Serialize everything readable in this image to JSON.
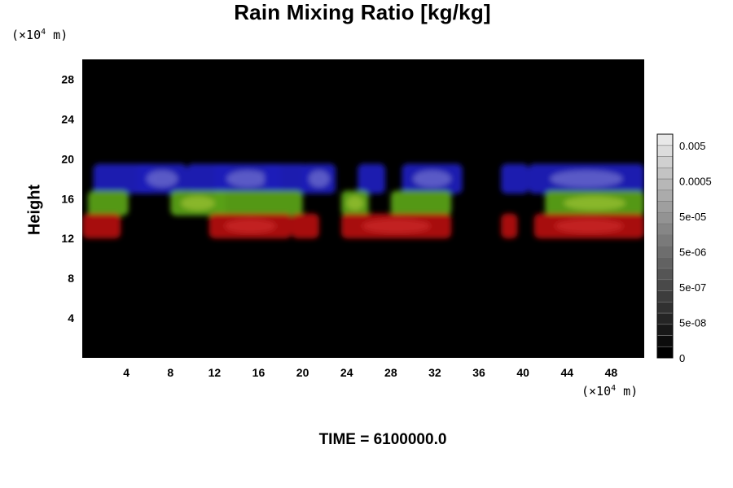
{
  "chart_data": {
    "type": "heatmap",
    "title": "Rain Mixing Ratio [kg/kg]",
    "ylabel": "Height",
    "xunit": {
      "prefix": "(×10",
      "exp": "4",
      "suffix": " m)"
    },
    "yunit": {
      "prefix": "(×10",
      "exp": "4",
      "suffix": " m)"
    },
    "xlim": [
      0,
      51
    ],
    "ylim": [
      0,
      30
    ],
    "xticks": [
      4,
      8,
      12,
      16,
      20,
      24,
      28,
      32,
      36,
      40,
      44,
      48
    ],
    "yticks": [
      4,
      8,
      12,
      16,
      20,
      24,
      28
    ],
    "colorbar": {
      "labels": [
        "0.005",
        "0.0005",
        "5e-05",
        "5e-06",
        "5e-07",
        "5e-08",
        "0"
      ],
      "levels": 20
    },
    "bands": [
      {
        "name": "blue",
        "color": "#1a1ab8",
        "highlight": "#8f8fd8",
        "y_range": [
          16.5,
          19.5
        ],
        "x_segments": [
          [
            1.0,
            6.5
          ],
          [
            5.0,
            9.5
          ],
          [
            9.5,
            13.5
          ],
          [
            12.0,
            18.0
          ],
          [
            16.5,
            20.5
          ],
          [
            20.0,
            23.0
          ],
          [
            25.0,
            27.5
          ],
          [
            29.0,
            34.5
          ],
          [
            38.0,
            40.5
          ],
          [
            40.5,
            51.0
          ]
        ]
      },
      {
        "name": "green",
        "color": "#5aa014",
        "highlight": "#b4d23c",
        "y_range": [
          14.3,
          16.8
        ],
        "x_segments": [
          [
            0.5,
            4.2
          ],
          [
            8.0,
            13.0
          ],
          [
            12.0,
            20.0
          ],
          [
            23.5,
            26.0
          ],
          [
            28.0,
            33.5
          ],
          [
            42.0,
            51.0
          ]
        ]
      },
      {
        "name": "red",
        "color": "#b01010",
        "highlight": "#d83030",
        "y_range": [
          12.0,
          14.5
        ],
        "x_segments": [
          [
            0.0,
            3.5
          ],
          [
            11.5,
            19.0
          ],
          [
            19.0,
            21.5
          ],
          [
            23.5,
            33.5
          ],
          [
            38.0,
            39.5
          ],
          [
            41.0,
            51.0
          ]
        ]
      }
    ]
  },
  "footer": {
    "time": "TIME = 6100000.0"
  }
}
